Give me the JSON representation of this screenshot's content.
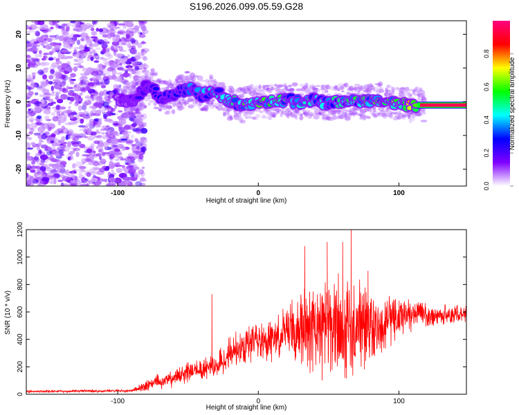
{
  "title": "S196.2026.099.05.59.G28",
  "chart_data": [
    {
      "type": "heatmap",
      "xlabel": "Height of straight line (km)",
      "ylabel": "Frequency (Hz)",
      "xlim": [
        -165,
        148
      ],
      "ylim": [
        -25,
        24
      ],
      "x_ticks": [
        -100,
        0,
        100
      ],
      "y_ticks": [
        -20,
        -10,
        0,
        10,
        20
      ],
      "colorbar": {
        "label": "Normalized spectral amplitude",
        "range": [
          0,
          1
        ],
        "ticks": [
          "0.0",
          "0.2",
          "0.4",
          "0.6",
          "0.8"
        ],
        "colors": [
          "#ffffff",
          "#7f00ff",
          "#0000ff",
          "#00ffff",
          "#00ff00",
          "#ffff00",
          "#ff0000",
          "#ff0080"
        ]
      },
      "ridge_frequency": {
        "x": [
          -100,
          -90,
          -80,
          -75,
          -70,
          -60,
          -50,
          -40,
          -30,
          -20,
          -10,
          0,
          10,
          20,
          30,
          40,
          50,
          60,
          70,
          80,
          90,
          100,
          110,
          120,
          130,
          148
        ],
        "y": [
          0.5,
          0,
          4,
          4.5,
          1,
          2,
          4,
          2,
          3,
          0,
          -1,
          0,
          0,
          0.5,
          0,
          0.5,
          -0.5,
          0,
          0,
          0,
          0.5,
          -1,
          -1,
          -1,
          -1,
          -1
        ]
      },
      "ridge_amplitude": {
        "x": [
          -100,
          -80,
          -60,
          -40,
          -20,
          0,
          20,
          40,
          60,
          80,
          100,
          115,
          130,
          148
        ],
        "y": [
          0.15,
          0.25,
          0.3,
          0.4,
          0.55,
          0.6,
          0.55,
          0.5,
          0.5,
          0.6,
          0.65,
          0.95,
          1.0,
          1.0
        ]
      }
    },
    {
      "type": "line",
      "xlabel": "Height of straight line (km)",
      "ylabel": "SNR (10 * v/v)",
      "xlim": [
        -165,
        148
      ],
      "ylim": [
        0,
        1200
      ],
      "x_ticks": [
        -100,
        0,
        100
      ],
      "y_ticks": [
        0,
        200,
        400,
        600,
        800,
        1000,
        1200
      ],
      "color": "#ff0000",
      "envelope": {
        "x": [
          -165,
          -90,
          -75,
          -60,
          -45,
          -32,
          -20,
          -10,
          0,
          10,
          20,
          30,
          40,
          50,
          60,
          70,
          80,
          90,
          100,
          110,
          120,
          130,
          140,
          148
        ],
        "mean": [
          20,
          25,
          80,
          120,
          180,
          200,
          300,
          350,
          380,
          400,
          450,
          500,
          500,
          500,
          480,
          480,
          500,
          520,
          560,
          580,
          580,
          580,
          580,
          580
        ],
        "spread": [
          10,
          12,
          60,
          80,
          90,
          100,
          130,
          150,
          160,
          170,
          220,
          360,
          400,
          420,
          430,
          420,
          320,
          250,
          180,
          120,
          100,
          90,
          90,
          90
        ]
      },
      "spikes": [
        {
          "x": -33,
          "y": 730
        },
        {
          "x": 33,
          "y": 1080
        },
        {
          "x": 49,
          "y": 1110
        },
        {
          "x": 60,
          "y": 1110
        },
        {
          "x": 66,
          "y": 1210
        },
        {
          "x": 78,
          "y": 900
        }
      ]
    }
  ]
}
